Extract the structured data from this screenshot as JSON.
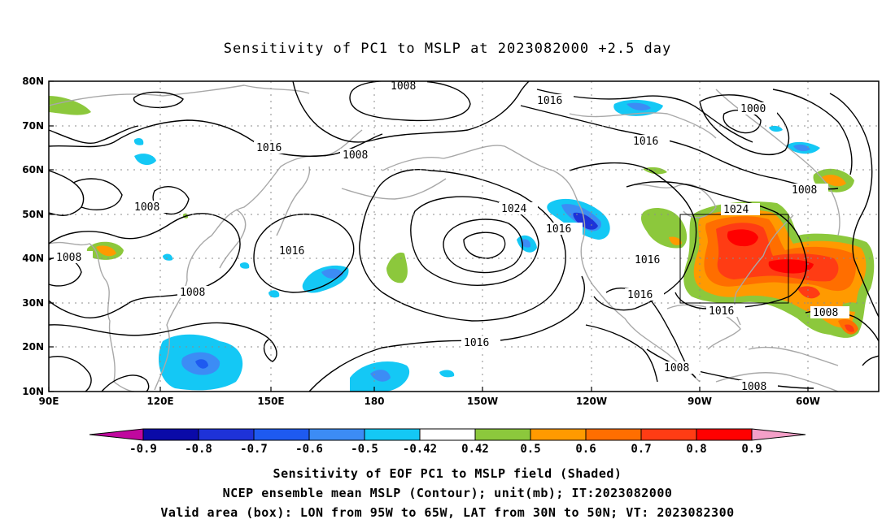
{
  "title": "Sensitivity of PC1 to MSLP at 2023082000 +2.5 day",
  "axes": {
    "lat_labels": [
      "80N",
      "70N",
      "60N",
      "50N",
      "40N",
      "30N",
      "20N",
      "10N"
    ],
    "lon_labels": [
      "90E",
      "120E",
      "150E",
      "180",
      "150W",
      "120W",
      "90W",
      "60W"
    ],
    "grid": true,
    "grid_style": "dotted"
  },
  "contour_labels": [
    {
      "id": "c1008_top",
      "text": "1008"
    },
    {
      "id": "c1016_a",
      "text": "1016"
    },
    {
      "id": "c1000",
      "text": "1000"
    },
    {
      "id": "c1016_b",
      "text": "1016"
    },
    {
      "id": "c1008_b",
      "text": "1008"
    },
    {
      "id": "c1008_c",
      "text": "1008"
    },
    {
      "id": "c1008_d",
      "text": "1008"
    },
    {
      "id": "c1024_a",
      "text": "1024"
    },
    {
      "id": "c1016_c",
      "text": "1016"
    },
    {
      "id": "c1024_b",
      "text": "1024"
    },
    {
      "id": "c1016_d",
      "text": "1016"
    },
    {
      "id": "c1008_e",
      "text": "1008"
    },
    {
      "id": "c1016_e",
      "text": "1016"
    },
    {
      "id": "c1016_f",
      "text": "1016"
    },
    {
      "id": "c1016_g",
      "text": "1016"
    },
    {
      "id": "c1016_h",
      "text": "1016"
    },
    {
      "id": "c1008_f",
      "text": "1008"
    },
    {
      "id": "c1008_g",
      "text": "1008"
    },
    {
      "id": "c1016_i",
      "text": "1016"
    },
    {
      "id": "c1008_h",
      "text": "1008"
    },
    {
      "id": "c1008_i",
      "text": "1008"
    }
  ],
  "valid_box": {
    "lon_from": "95W",
    "lon_to": "65W",
    "lat_from": "30N",
    "lat_to": "50N"
  },
  "colorbar": {
    "labels": [
      "-0.9",
      "-0.8",
      "-0.7",
      "-0.6",
      "-0.5",
      "-0.42",
      "0.42",
      "0.5",
      "0.6",
      "0.7",
      "0.8",
      "0.9"
    ],
    "colors": [
      "#c0089e",
      "#0a0aa8",
      "#1e32d8",
      "#1e5af0",
      "#3c8cf5",
      "#14c8f5",
      "#ffffff",
      "#8cc83c",
      "#ff9a00",
      "#ff6e00",
      "#ff3c14",
      "#ff0000",
      "#f4a0c8"
    ]
  },
  "captions": [
    "Sensitivity of EOF PC1 to MSLP field (Shaded)",
    "NCEP ensemble mean MSLP (Contour); unit(mb); IT:2023082000",
    "Valid area (box): LON from 95W to 65W, LAT from 30N to 50N; VT: 2023082300"
  ]
}
